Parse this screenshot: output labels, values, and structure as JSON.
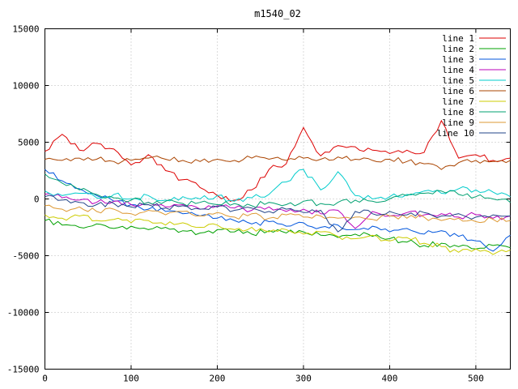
{
  "title": "m1540_02",
  "chart_data": {
    "type": "line",
    "title": "m1540_02",
    "xlabel": "",
    "ylabel": "",
    "xlim": [
      0,
      540
    ],
    "ylim": [
      -15000,
      15000
    ],
    "x_ticks": [
      0,
      100,
      200,
      300,
      400,
      500
    ],
    "y_ticks": [
      -15000,
      -10000,
      -5000,
      0,
      5000,
      10000,
      15000
    ],
    "grid": true,
    "legend_position": "top-right-inside",
    "background": "#ffffff",
    "border_color": "#000000",
    "grid_color": "#b8b8b8",
    "x": [
      0,
      20,
      40,
      60,
      80,
      100,
      120,
      140,
      160,
      180,
      200,
      220,
      240,
      260,
      280,
      300,
      320,
      340,
      360,
      380,
      400,
      420,
      440,
      460,
      480,
      500,
      520,
      540
    ],
    "series": [
      {
        "name": "line 1",
        "color": "#dd0000",
        "values": [
          4200,
          5700,
          4300,
          4900,
          4400,
          3000,
          3900,
          2500,
          1700,
          1000,
          300,
          -100,
          800,
          2600,
          3100,
          6300,
          3800,
          4700,
          4600,
          4300,
          4000,
          4300,
          4100,
          6900,
          3600,
          3900,
          3400,
          3600
        ]
      },
      {
        "name": "line 2",
        "color": "#00a000",
        "values": [
          -1900,
          -2300,
          -2500,
          -2200,
          -2600,
          -2400,
          -2700,
          -2500,
          -2800,
          -3000,
          -2700,
          -2900,
          -3100,
          -2800,
          -3000,
          -2900,
          -3200,
          -3400,
          -3100,
          -3300,
          -3500,
          -3800,
          -4100,
          -3900,
          -4200,
          -4400,
          -4100,
          -4300
        ]
      },
      {
        "name": "line 3",
        "color": "#0055dd",
        "values": [
          2600,
          1600,
          900,
          300,
          -200,
          -500,
          -900,
          -1100,
          -1300,
          -1500,
          -1700,
          -1900,
          -2200,
          -2000,
          -2400,
          -2100,
          -2500,
          -2300,
          -2700,
          -2400,
          -2900,
          -2600,
          -3100,
          -2800,
          -3300,
          -3700,
          -4600,
          -3200
        ]
      },
      {
        "name": "line 4",
        "color": "#bb00bb",
        "values": [
          400,
          100,
          -100,
          -300,
          -200,
          -500,
          -300,
          -700,
          -500,
          -900,
          -600,
          -800,
          -1000,
          -700,
          -1100,
          -900,
          -1300,
          -1000,
          -2600,
          -1100,
          -1500,
          -1200,
          -1400,
          -1300,
          -1600,
          -1400,
          -1700,
          -1500
        ]
      },
      {
        "name": "line 5",
        "color": "#00cccc",
        "values": [
          700,
          300,
          500,
          100,
          400,
          0,
          300,
          -100,
          200,
          0,
          300,
          -200,
          100,
          400,
          1500,
          2600,
          800,
          2400,
          300,
          0,
          200,
          400,
          700,
          500,
          900,
          800,
          600,
          200
        ]
      },
      {
        "name": "line 6",
        "color": "#aa4400",
        "values": [
          3500,
          3400,
          3600,
          3500,
          3300,
          3400,
          3600,
          3500,
          3400,
          3300,
          3500,
          3400,
          3600,
          3500,
          3400,
          3600,
          3500,
          3700,
          3500,
          3400,
          3500,
          3300,
          3100,
          2600,
          3200,
          3400,
          3300,
          3400
        ]
      },
      {
        "name": "line 7",
        "color": "#cccc00",
        "values": [
          -1400,
          -1700,
          -1500,
          -1900,
          -1800,
          -2100,
          -1900,
          -2300,
          -2100,
          -2500,
          -2300,
          -2700,
          -2500,
          -2900,
          -2700,
          -3100,
          -2900,
          -3300,
          -3500,
          -3200,
          -3700,
          -3400,
          -3900,
          -4200,
          -4700,
          -4400,
          -4900,
          -4500
        ]
      },
      {
        "name": "line 8",
        "color": "#00a070",
        "values": [
          2200,
          1400,
          800,
          400,
          100,
          -100,
          -300,
          -200,
          -400,
          -300,
          -500,
          -400,
          -600,
          -300,
          -500,
          -200,
          -400,
          -300,
          -100,
          -200,
          0,
          300,
          500,
          700,
          400,
          200,
          0,
          -300
        ]
      },
      {
        "name": "line 9",
        "color": "#dd9933",
        "values": [
          -600,
          -900,
          -700,
          -1100,
          -900,
          -1300,
          -1000,
          -1400,
          -1100,
          -1500,
          -1200,
          -1600,
          -1300,
          -1700,
          -1400,
          -1600,
          -1500,
          -1700,
          -1600,
          -1800,
          -1500,
          -1700,
          -1600,
          -1900,
          -1700,
          -2000,
          -1800,
          -1900
        ]
      },
      {
        "name": "line 10",
        "color": "#224488",
        "values": [
          200,
          -100,
          -300,
          -500,
          -400,
          -700,
          -500,
          -800,
          -600,
          -900,
          -700,
          -1000,
          -800,
          -1100,
          -900,
          -1200,
          -1000,
          -2900,
          -1100,
          -1300,
          -1100,
          -1400,
          -1200,
          -1500,
          -1300,
          -1600,
          -1400,
          -1500
        ]
      }
    ]
  }
}
